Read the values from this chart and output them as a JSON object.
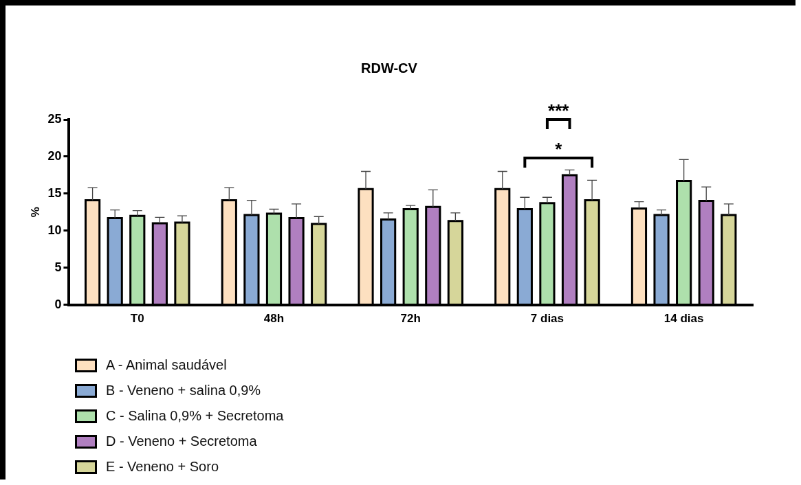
{
  "chart_data": {
    "type": "bar",
    "title": "RDW-CV",
    "ylabel": "%",
    "categories": [
      "T0",
      "48h",
      "72h",
      "7 dias",
      "14 dias"
    ],
    "ylim": [
      0,
      25
    ],
    "yticks": [
      0,
      5,
      10,
      15,
      20,
      25
    ],
    "grid": false,
    "legend": "bottom left",
    "series": [
      {
        "name": "A - Animal saudável",
        "color": "#fde0c0",
        "values": [
          14.1,
          14.1,
          15.6,
          15.6,
          13.0
        ],
        "errors": [
          1.7,
          1.7,
          2.4,
          2.4,
          0.9
        ]
      },
      {
        "name": "B - Veneno + salina 0,9%",
        "color": "#8aaad4",
        "values": [
          11.7,
          12.1,
          11.5,
          12.9,
          12.1
        ],
        "errors": [
          1.1,
          2.0,
          0.9,
          1.6,
          0.7
        ]
      },
      {
        "name": "C - Salina 0,9% + Secretoma",
        "color": "#aee0ac",
        "values": [
          12.0,
          12.3,
          12.9,
          13.7,
          16.7
        ],
        "errors": [
          0.7,
          0.6,
          0.5,
          0.8,
          2.9
        ]
      },
      {
        "name": "D - Veneno + Secretoma",
        "color": "#b07fc0",
        "values": [
          11.0,
          11.7,
          13.2,
          17.5,
          14.0
        ],
        "errors": [
          0.8,
          1.9,
          2.3,
          0.7,
          1.9
        ]
      },
      {
        "name": "E - Veneno + Soro",
        "color": "#d6d69a",
        "values": [
          11.1,
          10.9,
          11.3,
          14.1,
          12.1
        ],
        "errors": [
          0.9,
          1.0,
          1.1,
          2.7,
          1.5
        ]
      }
    ],
    "annotations": [
      "***",
      "*"
    ]
  }
}
